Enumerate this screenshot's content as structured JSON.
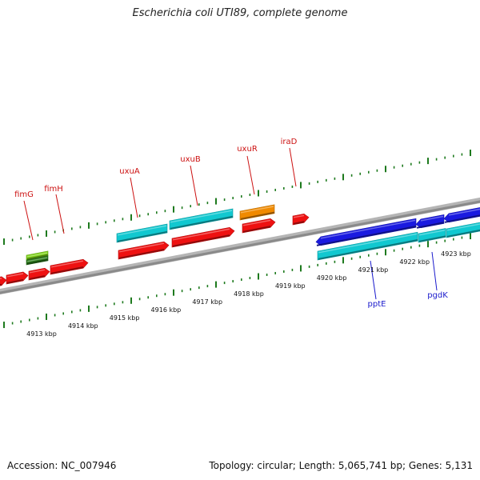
{
  "title": "Escherichia coli UTI89, complete genome",
  "footer": {
    "accession": "Accession: NC_007946",
    "topology": "Topology: circular; Length: 5,065,741 bp; Genes: 5,131"
  },
  "colors": {
    "backbone": "#8a8a8a",
    "tick": "#1e7a1e",
    "gene_red": "#ee1111",
    "gene_cyan": "#11c8d0",
    "gene_blue": "#1a1ae0",
    "gene_orange": "#f08a00",
    "gene_green": "#7ed319",
    "label_red": "#cc1111",
    "label_blue": "#1a1acc"
  },
  "tick_labels": [
    "4913 kbp",
    "4914 kbp",
    "4915 kbp",
    "4916 kbp",
    "4917 kbp",
    "4918 kbp",
    "4919 kbp",
    "4920 kbp",
    "4921 kbp",
    "4922 kbp",
    "4923 kbp"
  ],
  "gene_labels": [
    {
      "text": "fimG",
      "color": "label_red"
    },
    {
      "text": "fimH",
      "color": "label_red"
    },
    {
      "text": "uxuA",
      "color": "label_red"
    },
    {
      "text": "uxuB",
      "color": "label_red"
    },
    {
      "text": "uxuR",
      "color": "label_red"
    },
    {
      "text": "iraD",
      "color": "label_red"
    },
    {
      "text": "pptE",
      "color": "label_blue"
    },
    {
      "text": "pgdK",
      "color": "label_blue"
    }
  ]
}
